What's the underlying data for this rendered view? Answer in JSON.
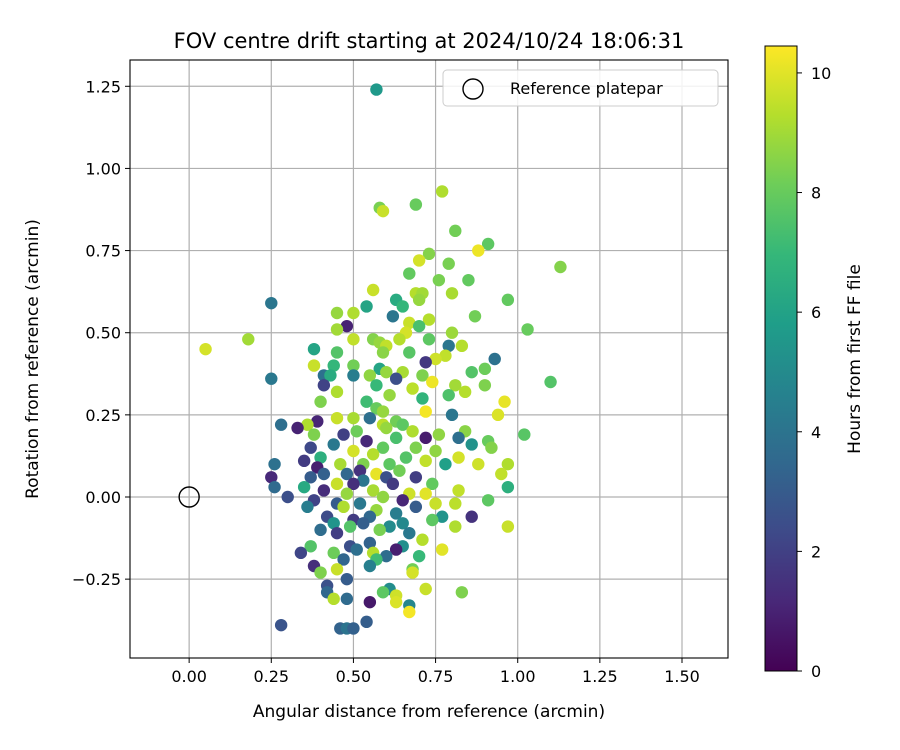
{
  "chart_data": {
    "type": "scatter",
    "title": "FOV centre drift starting at 2024/10/24 18:06:31",
    "xlabel": "Angular distance from reference (arcmin)",
    "ylabel": "Rotation from reference (arcmin)",
    "xlim": [
      -0.18,
      1.64
    ],
    "ylim": [
      -0.49,
      1.33
    ],
    "xticks": [
      0.0,
      0.25,
      0.5,
      0.75,
      1.0,
      1.25,
      1.5
    ],
    "xtick_labels": [
      "0.00",
      "0.25",
      "0.50",
      "0.75",
      "1.00",
      "1.25",
      "1.50"
    ],
    "yticks": [
      -0.25,
      0.0,
      0.25,
      0.5,
      0.75,
      1.0,
      1.25
    ],
    "ytick_labels": [
      "−0.25",
      "0.00",
      "0.25",
      "0.50",
      "0.75",
      "1.00",
      "1.25"
    ],
    "grid": true,
    "legend": {
      "placement": "top-right",
      "entries": [
        {
          "label": "Reference platepar",
          "marker": "open-circle"
        }
      ]
    },
    "colormap": "viridis",
    "colorbar": {
      "label": "Hours from first FF file",
      "range": [
        0,
        10.45
      ],
      "ticks": [
        0,
        2,
        4,
        6,
        8,
        10
      ],
      "tick_labels": [
        "0",
        "2",
        "4",
        "6",
        "8",
        "10"
      ]
    },
    "reference_point": {
      "x": 0.0,
      "y": 0.0,
      "label": "Reference platepar"
    },
    "points": [
      [
        0.57,
        1.24,
        5.6
      ],
      [
        0.77,
        0.93,
        9.2
      ],
      [
        0.58,
        0.88,
        8.3
      ],
      [
        0.59,
        0.87,
        9.6
      ],
      [
        0.69,
        0.89,
        8.0
      ],
      [
        0.81,
        0.81,
        8.2
      ],
      [
        0.91,
        0.77,
        7.8
      ],
      [
        0.88,
        0.75,
        10.2
      ],
      [
        0.73,
        0.74,
        8.5
      ],
      [
        1.13,
        0.7,
        8.5
      ],
      [
        0.7,
        0.72,
        9.8
      ],
      [
        0.79,
        0.71,
        8.3
      ],
      [
        0.67,
        0.68,
        7.9
      ],
      [
        0.76,
        0.66,
        8.3
      ],
      [
        0.85,
        0.66,
        7.9
      ],
      [
        0.56,
        0.63,
        9.6
      ],
      [
        0.69,
        0.62,
        9.3
      ],
      [
        0.71,
        0.62,
        9.0
      ],
      [
        0.7,
        0.6,
        8.8
      ],
      [
        0.8,
        0.62,
        9.1
      ],
      [
        0.63,
        0.6,
        6.4
      ],
      [
        0.65,
        0.58,
        6.9
      ],
      [
        0.54,
        0.58,
        6.1
      ],
      [
        0.97,
        0.6,
        7.9
      ],
      [
        0.25,
        0.59,
        4.1
      ],
      [
        0.5,
        0.56,
        9.2
      ],
      [
        0.45,
        0.56,
        8.8
      ],
      [
        0.62,
        0.55,
        4.1
      ],
      [
        0.87,
        0.55,
        8.2
      ],
      [
        0.73,
        0.54,
        9.3
      ],
      [
        0.67,
        0.53,
        9.6
      ],
      [
        0.7,
        0.52,
        7.4
      ],
      [
        0.48,
        0.52,
        1.0
      ],
      [
        0.45,
        0.51,
        9.0
      ],
      [
        1.03,
        0.51,
        8.0
      ],
      [
        0.66,
        0.5,
        9.8
      ],
      [
        0.8,
        0.5,
        8.9
      ],
      [
        0.18,
        0.48,
        9.0
      ],
      [
        0.73,
        0.48,
        7.8
      ],
      [
        0.64,
        0.48,
        9.3
      ],
      [
        0.56,
        0.48,
        8.5
      ],
      [
        0.5,
        0.48,
        9.5
      ],
      [
        0.58,
        0.47,
        8.8
      ],
      [
        0.83,
        0.46,
        9.3
      ],
      [
        0.6,
        0.46,
        9.5
      ],
      [
        0.79,
        0.46,
        4.1
      ],
      [
        0.05,
        0.45,
        9.8
      ],
      [
        0.38,
        0.45,
        6.1
      ],
      [
        0.45,
        0.44,
        7.6
      ],
      [
        0.59,
        0.44,
        8.6
      ],
      [
        0.67,
        0.44,
        7.7
      ],
      [
        0.78,
        0.43,
        9.5
      ],
      [
        0.75,
        0.42,
        9.7
      ],
      [
        0.72,
        0.41,
        1.7
      ],
      [
        0.93,
        0.42,
        3.9
      ],
      [
        0.44,
        0.4,
        6.9
      ],
      [
        0.5,
        0.4,
        8.2
      ],
      [
        0.38,
        0.4,
        9.6
      ],
      [
        0.58,
        0.39,
        6.1
      ],
      [
        0.65,
        0.38,
        9.1
      ],
      [
        0.9,
        0.39,
        8.1
      ],
      [
        0.6,
        0.38,
        8.8
      ],
      [
        0.86,
        0.38,
        7.6
      ],
      [
        0.71,
        0.37,
        8.4
      ],
      [
        0.55,
        0.37,
        8.7
      ],
      [
        0.41,
        0.37,
        3.9
      ],
      [
        0.43,
        0.37,
        6.4
      ],
      [
        0.5,
        0.37,
        4.4
      ],
      [
        0.63,
        0.36,
        2.5
      ],
      [
        0.74,
        0.35,
        10.2
      ],
      [
        1.1,
        0.35,
        7.6
      ],
      [
        0.25,
        0.36,
        4.2
      ],
      [
        0.81,
        0.34,
        9.0
      ],
      [
        0.41,
        0.34,
        2.1
      ],
      [
        0.57,
        0.34,
        7.0
      ],
      [
        0.9,
        0.34,
        8.4
      ],
      [
        0.68,
        0.33,
        9.4
      ],
      [
        0.84,
        0.32,
        9.3
      ],
      [
        0.45,
        0.32,
        9.2
      ],
      [
        0.79,
        0.31,
        7.5
      ],
      [
        0.61,
        0.31,
        8.8
      ],
      [
        0.71,
        0.3,
        6.8
      ],
      [
        0.4,
        0.29,
        8.4
      ],
      [
        0.54,
        0.29,
        7.2
      ],
      [
        0.96,
        0.29,
        10.1
      ],
      [
        0.57,
        0.27,
        8.0
      ],
      [
        0.59,
        0.26,
        8.8
      ],
      [
        0.72,
        0.26,
        10.3
      ],
      [
        0.8,
        0.25,
        4.1
      ],
      [
        0.94,
        0.25,
        9.9
      ],
      [
        0.5,
        0.24,
        9.1
      ],
      [
        0.55,
        0.24,
        3.8
      ],
      [
        0.63,
        0.23,
        8.2
      ],
      [
        0.45,
        0.24,
        9.6
      ],
      [
        0.39,
        0.23,
        1.1
      ],
      [
        0.59,
        0.22,
        9.4
      ],
      [
        0.65,
        0.22,
        7.8
      ],
      [
        0.36,
        0.22,
        9.2
      ],
      [
        0.33,
        0.21,
        1.0
      ],
      [
        0.28,
        0.22,
        3.8
      ],
      [
        0.6,
        0.21,
        8.8
      ],
      [
        0.84,
        0.2,
        8.6
      ],
      [
        0.51,
        0.2,
        8.1
      ],
      [
        0.68,
        0.2,
        9.2
      ],
      [
        0.76,
        0.19,
        8.7
      ],
      [
        1.02,
        0.19,
        7.7
      ],
      [
        0.47,
        0.19,
        2.0
      ],
      [
        0.38,
        0.19,
        8.4
      ],
      [
        0.72,
        0.18,
        0.8
      ],
      [
        0.91,
        0.17,
        8.0
      ],
      [
        0.82,
        0.18,
        3.8
      ],
      [
        0.54,
        0.17,
        1.2
      ],
      [
        0.63,
        0.18,
        7.4
      ],
      [
        0.86,
        0.16,
        5.3
      ],
      [
        0.44,
        0.16,
        4.2
      ],
      [
        0.69,
        0.15,
        8.4
      ],
      [
        0.37,
        0.15,
        2.3
      ],
      [
        0.92,
        0.15,
        8.5
      ],
      [
        0.59,
        0.15,
        7.9
      ],
      [
        0.75,
        0.14,
        8.7
      ],
      [
        0.5,
        0.14,
        9.8
      ],
      [
        0.56,
        0.13,
        9.3
      ],
      [
        0.66,
        0.12,
        7.6
      ],
      [
        0.82,
        0.12,
        9.8
      ],
      [
        0.4,
        0.12,
        6.6
      ],
      [
        0.35,
        0.11,
        1.8
      ],
      [
        0.72,
        0.11,
        9.5
      ],
      [
        0.46,
        0.1,
        9.1
      ],
      [
        0.61,
        0.1,
        7.8
      ],
      [
        0.53,
        0.1,
        8.4
      ],
      [
        0.78,
        0.1,
        5.9
      ],
      [
        0.88,
        0.1,
        9.7
      ],
      [
        0.97,
        0.1,
        9.2
      ],
      [
        0.26,
        0.1,
        3.9
      ],
      [
        0.39,
        0.09,
        0.9
      ],
      [
        0.64,
        0.08,
        8.2
      ],
      [
        0.52,
        0.08,
        1.5
      ],
      [
        0.57,
        0.07,
        10.1
      ],
      [
        0.95,
        0.07,
        9.5
      ],
      [
        0.41,
        0.07,
        3.2
      ],
      [
        0.48,
        0.07,
        3.5
      ],
      [
        0.25,
        0.06,
        1.2
      ],
      [
        0.6,
        0.06,
        2.5
      ],
      [
        0.69,
        0.06,
        1.9
      ],
      [
        0.37,
        0.06,
        3.0
      ],
      [
        0.53,
        0.05,
        4.1
      ],
      [
        0.45,
        0.04,
        9.6
      ],
      [
        0.74,
        0.04,
        7.9
      ],
      [
        0.62,
        0.04,
        1.8
      ],
      [
        0.5,
        0.04,
        1.4
      ],
      [
        0.26,
        0.03,
        3.6
      ],
      [
        0.35,
        0.03,
        6.3
      ],
      [
        0.97,
        0.03,
        6.6
      ],
      [
        0.41,
        0.02,
        1.3
      ],
      [
        0.82,
        0.02,
        9.5
      ],
      [
        0.56,
        0.02,
        9.1
      ],
      [
        0.67,
        0.01,
        9.7
      ],
      [
        0.48,
        0.01,
        8.8
      ],
      [
        0.72,
        0.01,
        10.0
      ],
      [
        0.3,
        0.0,
        2.5
      ],
      [
        0.59,
        0.0,
        8.7
      ],
      [
        0.38,
        -0.01,
        2.1
      ],
      [
        0.65,
        -0.01,
        1.1
      ],
      [
        0.45,
        -0.02,
        3.0
      ],
      [
        0.91,
        -0.01,
        7.8
      ],
      [
        0.75,
        -0.02,
        9.6
      ],
      [
        0.52,
        -0.02,
        4.2
      ],
      [
        0.36,
        -0.03,
        4.4
      ],
      [
        0.47,
        -0.03,
        9.2
      ],
      [
        0.81,
        -0.02,
        9.4
      ],
      [
        0.69,
        -0.03,
        3.0
      ],
      [
        0.57,
        -0.04,
        8.8
      ],
      [
        0.63,
        -0.05,
        4.4
      ],
      [
        0.42,
        -0.06,
        2.4
      ],
      [
        0.55,
        -0.06,
        3.5
      ],
      [
        0.77,
        -0.06,
        5.4
      ],
      [
        0.5,
        -0.07,
        1.8
      ],
      [
        0.65,
        -0.08,
        4.9
      ],
      [
        0.86,
        -0.06,
        1.5
      ],
      [
        0.44,
        -0.08,
        5.4
      ],
      [
        0.53,
        -0.08,
        3.1
      ],
      [
        0.74,
        -0.07,
        7.8
      ],
      [
        0.61,
        -0.09,
        5.0
      ],
      [
        0.81,
        -0.09,
        9.2
      ],
      [
        0.49,
        -0.09,
        7.6
      ],
      [
        0.97,
        -0.09,
        9.6
      ],
      [
        0.4,
        -0.1,
        3.7
      ],
      [
        0.58,
        -0.1,
        8.3
      ],
      [
        0.67,
        -0.11,
        4.2
      ],
      [
        0.45,
        -0.11,
        1.9
      ],
      [
        0.71,
        -0.13,
        9.3
      ],
      [
        0.55,
        -0.14,
        3.3
      ],
      [
        0.37,
        -0.15,
        7.6
      ],
      [
        0.49,
        -0.15,
        2.5
      ],
      [
        0.65,
        -0.15,
        5.2
      ],
      [
        0.77,
        -0.16,
        10.0
      ],
      [
        0.34,
        -0.17,
        2.2
      ],
      [
        0.51,
        -0.16,
        3.8
      ],
      [
        0.56,
        -0.17,
        9.3
      ],
      [
        0.63,
        -0.16,
        0.9
      ],
      [
        0.44,
        -0.17,
        8.1
      ],
      [
        0.6,
        -0.18,
        3.7
      ],
      [
        0.7,
        -0.18,
        7.0
      ],
      [
        0.47,
        -0.19,
        3.4
      ],
      [
        0.57,
        -0.19,
        7.2
      ],
      [
        0.38,
        -0.21,
        1.4
      ],
      [
        0.55,
        -0.21,
        4.5
      ],
      [
        0.68,
        -0.22,
        8.2
      ],
      [
        0.4,
        -0.23,
        8.4
      ],
      [
        0.45,
        -0.22,
        9.6
      ],
      [
        0.68,
        -0.23,
        9.8
      ],
      [
        0.48,
        -0.25,
        3.0
      ],
      [
        0.42,
        -0.27,
        2.6
      ],
      [
        0.61,
        -0.28,
        5.1
      ],
      [
        0.72,
        -0.28,
        9.6
      ],
      [
        0.83,
        -0.29,
        8.4
      ],
      [
        0.42,
        -0.29,
        3.5
      ],
      [
        0.59,
        -0.29,
        7.8
      ],
      [
        0.63,
        -0.3,
        9.7
      ],
      [
        0.48,
        -0.31,
        3.6
      ],
      [
        0.44,
        -0.31,
        9.3
      ],
      [
        0.55,
        -0.32,
        0.7
      ],
      [
        0.63,
        -0.32,
        9.9
      ],
      [
        0.67,
        -0.33,
        4.8
      ],
      [
        0.67,
        -0.35,
        10.3
      ],
      [
        0.54,
        -0.38,
        3.1
      ],
      [
        0.28,
        -0.39,
        2.7
      ],
      [
        0.46,
        -0.4,
        3.3
      ],
      [
        0.48,
        -0.4,
        4.0
      ],
      [
        0.5,
        -0.4,
        3.2
      ]
    ]
  }
}
